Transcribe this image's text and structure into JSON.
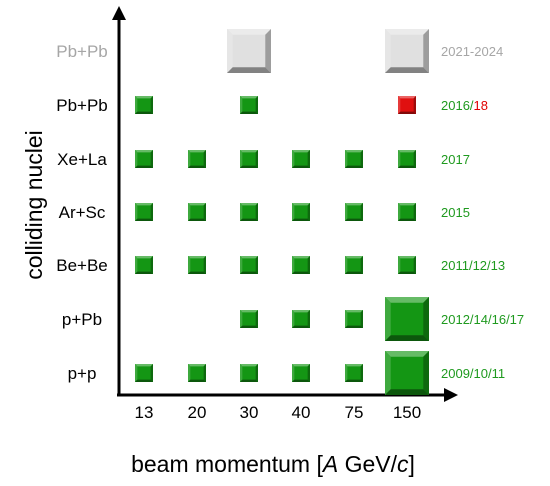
{
  "chart_data": {
    "type": "table",
    "xlabel": "beam momentum [A GeV/c]",
    "xlabel_parts": [
      "beam momentum [",
      "A",
      " GeV/",
      "c",
      "]"
    ],
    "ylabel": "colliding nuclei",
    "categories": [
      "13",
      "20",
      "30",
      "40",
      "75",
      "150"
    ],
    "systems": [
      {
        "name": "Pb+Pb",
        "years": "2021-2024",
        "year_parts": [
          {
            "text": "2021-2024",
            "color": "#a6a6a6"
          }
        ],
        "future": true,
        "points": [
          {
            "x": "30",
            "size": "large",
            "color": "#e0e0e0"
          },
          {
            "x": "150",
            "size": "large",
            "color": "#e0e0e0"
          }
        ]
      },
      {
        "name": "Pb+Pb",
        "years": "2016/18",
        "year_parts": [
          {
            "text": "2016/",
            "color": "#1f9a1f"
          },
          {
            "text": "18",
            "color": "#e00000"
          }
        ],
        "future": false,
        "points": [
          {
            "x": "13",
            "size": "small",
            "color": "#149614"
          },
          {
            "x": "30",
            "size": "small",
            "color": "#149614"
          },
          {
            "x": "150",
            "size": "small",
            "color": "#e01010"
          }
        ]
      },
      {
        "name": "Xe+La",
        "years": "2017",
        "year_parts": [
          {
            "text": "2017",
            "color": "#1f9a1f"
          }
        ],
        "future": false,
        "points": [
          {
            "x": "13",
            "size": "small",
            "color": "#149614"
          },
          {
            "x": "20",
            "size": "small",
            "color": "#149614"
          },
          {
            "x": "30",
            "size": "small",
            "color": "#149614"
          },
          {
            "x": "40",
            "size": "small",
            "color": "#149614"
          },
          {
            "x": "75",
            "size": "small",
            "color": "#149614"
          },
          {
            "x": "150",
            "size": "small",
            "color": "#149614"
          }
        ]
      },
      {
        "name": "Ar+Sc",
        "years": "2015",
        "year_parts": [
          {
            "text": "2015",
            "color": "#1f9a1f"
          }
        ],
        "future": false,
        "points": [
          {
            "x": "13",
            "size": "small",
            "color": "#149614"
          },
          {
            "x": "20",
            "size": "small",
            "color": "#149614"
          },
          {
            "x": "30",
            "size": "small",
            "color": "#149614"
          },
          {
            "x": "40",
            "size": "small",
            "color": "#149614"
          },
          {
            "x": "75",
            "size": "small",
            "color": "#149614"
          },
          {
            "x": "150",
            "size": "small",
            "color": "#149614"
          }
        ]
      },
      {
        "name": "Be+Be",
        "years": "2011/12/13",
        "year_parts": [
          {
            "text": "2011/12/13",
            "color": "#1f9a1f"
          }
        ],
        "future": false,
        "points": [
          {
            "x": "13",
            "size": "small",
            "color": "#149614"
          },
          {
            "x": "20",
            "size": "small",
            "color": "#149614"
          },
          {
            "x": "30",
            "size": "small",
            "color": "#149614"
          },
          {
            "x": "40",
            "size": "small",
            "color": "#149614"
          },
          {
            "x": "75",
            "size": "small",
            "color": "#149614"
          },
          {
            "x": "150",
            "size": "small",
            "color": "#149614"
          }
        ]
      },
      {
        "name": "p+Pb",
        "years": "2012/14/16/17",
        "year_parts": [
          {
            "text": "2012/14/16/17",
            "color": "#1f9a1f"
          }
        ],
        "future": false,
        "points": [
          {
            "x": "30",
            "size": "small",
            "color": "#149614"
          },
          {
            "x": "40",
            "size": "small",
            "color": "#149614"
          },
          {
            "x": "75",
            "size": "small",
            "color": "#149614"
          },
          {
            "x": "150",
            "size": "large",
            "color": "#149614"
          }
        ]
      },
      {
        "name": "p+p",
        "years": "2009/10/11",
        "year_parts": [
          {
            "text": "2009/10/11",
            "color": "#1f9a1f"
          }
        ],
        "future": false,
        "points": [
          {
            "x": "13",
            "size": "small",
            "color": "#149614"
          },
          {
            "x": "20",
            "size": "small",
            "color": "#149614"
          },
          {
            "x": "30",
            "size": "small",
            "color": "#149614"
          },
          {
            "x": "40",
            "size": "small",
            "color": "#149614"
          },
          {
            "x": "75",
            "size": "small",
            "color": "#149614"
          },
          {
            "x": "150",
            "size": "large",
            "color": "#149614"
          }
        ]
      }
    ],
    "grid": false,
    "legend": "none"
  }
}
